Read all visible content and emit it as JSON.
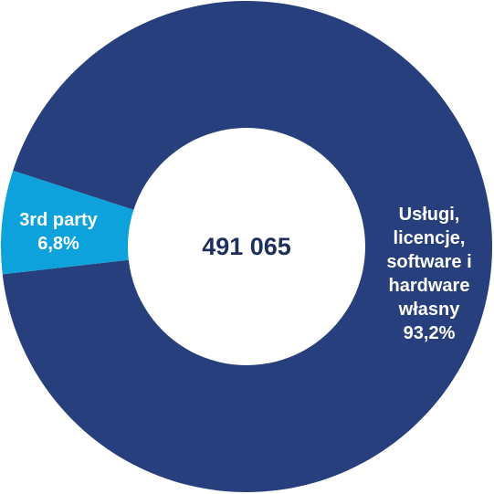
{
  "chart_data": {
    "type": "donut",
    "categories": [
      "Usługi, licencje, software i hardware własny",
      "3rd party"
    ],
    "values": [
      93.2,
      6.8
    ],
    "value_labels": [
      "93,2%",
      "6,8%"
    ],
    "colors": [
      "#273f7d",
      "#0ea2dc"
    ],
    "center_label": "491 065"
  }
}
